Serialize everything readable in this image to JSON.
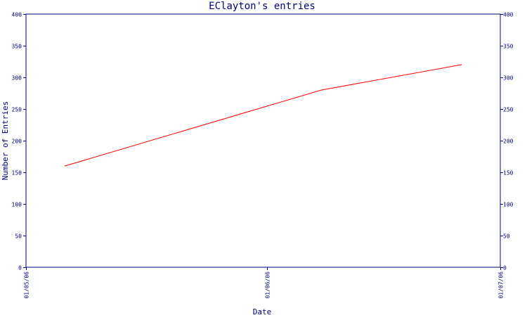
{
  "chart_data": {
    "type": "line",
    "title": "EClayton's entries",
    "xlabel": "Date",
    "ylabel": "Number of Entries",
    "ylim": [
      0,
      400
    ],
    "yticks": [
      0,
      50,
      100,
      150,
      200,
      250,
      300,
      350,
      400
    ],
    "xlim": [
      "2006-05-01",
      "2006-07-01"
    ],
    "xticks": [
      {
        "date": "2006-05-01",
        "label": "01/05/06"
      },
      {
        "date": "2006-06-01",
        "label": "01/06/06"
      },
      {
        "date": "2006-07-01",
        "label": "01/07/06"
      }
    ],
    "series": [
      {
        "color": "#ff0000",
        "points": [
          {
            "x": "2006-05-06",
            "y": 160
          },
          {
            "x": "2006-06-08",
            "y": 280
          },
          {
            "x": "2006-06-26",
            "y": 320
          }
        ]
      }
    ],
    "axis_color": "#000080",
    "grid": false,
    "right_axis_mirror": true
  }
}
